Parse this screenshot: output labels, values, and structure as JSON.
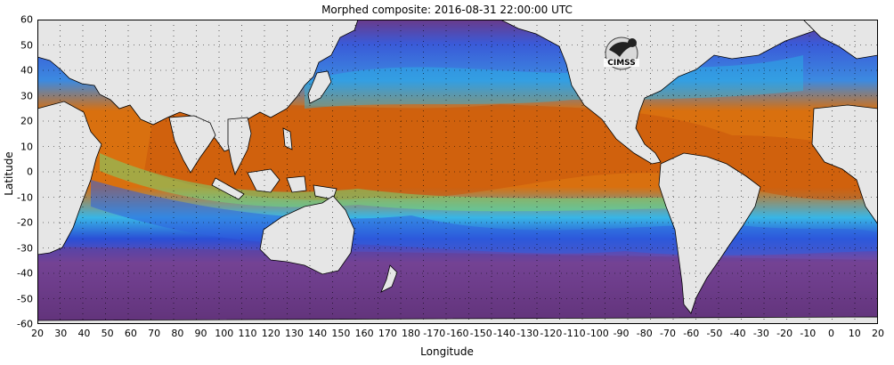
{
  "title": "Morphed composite: 2016-08-31 22:00:00 UTC",
  "axes": {
    "xlabel": "Longitude",
    "ylabel": "Latitude",
    "x_ticks": [
      "20",
      "30",
      "40",
      "50",
      "60",
      "70",
      "80",
      "90",
      "100",
      "110",
      "120",
      "130",
      "140",
      "150",
      "160",
      "170",
      "180",
      "-170",
      "-160",
      "-150",
      "-140",
      "-130",
      "-120",
      "-110",
      "-100",
      "-90",
      "-80",
      "-70",
      "-60",
      "-50",
      "-40",
      "-30",
      "-20",
      "-10",
      "0",
      "10",
      "20"
    ],
    "y_ticks": [
      "60",
      "50",
      "40",
      "30",
      "20",
      "10",
      "0",
      "-10",
      "-20",
      "-30",
      "-40",
      "-50",
      "-60"
    ]
  },
  "logo_text": "CIMSS",
  "colors": {
    "land": "#e6e6e6",
    "coast": "#000000",
    "very_dry": "#5a2e6e",
    "dry": "#8c4aa0",
    "mid_dry": "#2a4fd6",
    "moist": "#29b7e6",
    "wet_mid": "#6fe07a",
    "wet": "#e9d84a",
    "very_wet": "#d96a12",
    "peak": "#b9420a"
  }
}
